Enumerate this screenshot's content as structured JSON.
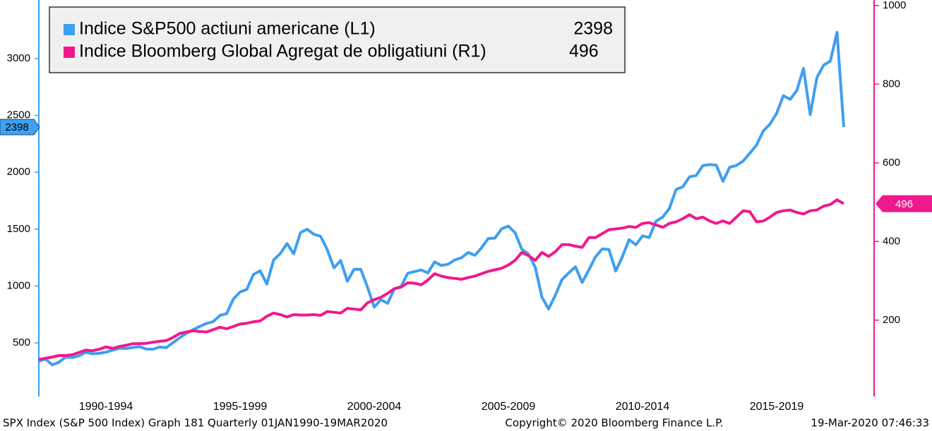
{
  "chart_data": {
    "type": "line",
    "categories": [
      null,
      null,
      null,
      null,
      null,
      null,
      null,
      null,
      null,
      null,
      null,
      null,
      null,
      null,
      null,
      null,
      null,
      null,
      null,
      null,
      null,
      null,
      null,
      null,
      null,
      null,
      null,
      null,
      null,
      null,
      null,
      null,
      null,
      null,
      null,
      null,
      null,
      null,
      null,
      null,
      null,
      null,
      null,
      null,
      null,
      null,
      null,
      null,
      null,
      null,
      null,
      null,
      null,
      null,
      null,
      null,
      null,
      null,
      null,
      null,
      null,
      null,
      null,
      null,
      null,
      null,
      null,
      null,
      null,
      null,
      null,
      null,
      null,
      null,
      null,
      null,
      null,
      null,
      null,
      null,
      null,
      null,
      null,
      null,
      null,
      null,
      null,
      null,
      null,
      null,
      null,
      null,
      null,
      null,
      null,
      null,
      null,
      null,
      null,
      null,
      null,
      null,
      null,
      null,
      null,
      null,
      null,
      null,
      null,
      null,
      null,
      null,
      null,
      null,
      null,
      null,
      null,
      null,
      null,
      null,
      null
    ],
    "xticks": [
      {
        "value": 10,
        "label": "1990-1994"
      },
      {
        "value": 30,
        "label": "1995-1999"
      },
      {
        "value": 50,
        "label": "2000-2004"
      },
      {
        "value": 70,
        "label": "2005-2009"
      },
      {
        "value": 90,
        "label": "2010-2014"
      },
      {
        "value": 110,
        "label": "2015-2019"
      }
    ],
    "series": [
      {
        "name": "Indice S&P500 actiuni americane (L1)",
        "color": "#3f9ff0",
        "axis": "y",
        "values": [
          340,
          358,
          306,
          330,
          375,
          371,
          387,
          417,
          404,
          408,
          418,
          436,
          452,
          451,
          459,
          466,
          446,
          444,
          463,
          459,
          501,
          545,
          584,
          616,
          645,
          671,
          687,
          741,
          757,
          885,
          947,
          970,
          1102,
          1134,
          1017,
          1229,
          1286,
          1373,
          1283,
          1469,
          1499,
          1455,
          1437,
          1320,
          1160,
          1224,
          1041,
          1148,
          1147,
          990,
          815,
          880,
          848,
          975,
          996,
          1112,
          1126,
          1141,
          1115,
          1212,
          1181,
          1191,
          1229,
          1248,
          1295,
          1270,
          1336,
          1418,
          1421,
          1503,
          1527,
          1468,
          1323,
          1280,
          1166,
          903,
          798,
          919,
          1057,
          1115,
          1169,
          1031,
          1141,
          1258,
          1326,
          1321,
          1131,
          1258,
          1408,
          1362,
          1441,
          1426,
          1569,
          1606,
          1682,
          1848,
          1872,
          1960,
          1972,
          2059,
          2068,
          2063,
          1920,
          2044,
          2060,
          2099,
          2168,
          2239,
          2363,
          2423,
          2519,
          2674,
          2641,
          2718,
          2914,
          2507,
          2834,
          2942,
          2977,
          3231,
          2398
        ]
      },
      {
        "name": "Indice Bloomberg Global Agregat de obligatiuni (R1)",
        "color": "#f0198c",
        "axis": "y2",
        "values": [
          100,
          103,
          106,
          110,
          110,
          112,
          118,
          124,
          122,
          126,
          132,
          128,
          133,
          136,
          140,
          140,
          141,
          144,
          146,
          148,
          156,
          166,
          170,
          173,
          171,
          170,
          176,
          182,
          178,
          184,
          190,
          192,
          196,
          198,
          210,
          218,
          214,
          208,
          214,
          213,
          213,
          214,
          212,
          222,
          220,
          218,
          230,
          228,
          226,
          244,
          252,
          258,
          268,
          280,
          284,
          295,
          294,
          290,
          302,
          318,
          312,
          308,
          306,
          304,
          308,
          312,
          318,
          324,
          328,
          332,
          340,
          352,
          372,
          364,
          352,
          372,
          362,
          374,
          392,
          392,
          388,
          385,
          410,
          410,
          420,
          430,
          432,
          434,
          438,
          436,
          446,
          448,
          442,
          436,
          446,
          450,
          458,
          468,
          458,
          462,
          452,
          446,
          452,
          446,
          462,
          478,
          476,
          450,
          452,
          462,
          474,
          478,
          480,
          474,
          470,
          478,
          480,
          490,
          494,
          506,
          496
        ]
      }
    ],
    "ylim": [
      29,
      3515
    ],
    "yticks": [
      500,
      1000,
      1500,
      2000,
      2500,
      3000
    ],
    "y2lim": [
      6,
      1014
    ],
    "y2ticks": [
      200,
      400,
      600,
      800,
      1000
    ],
    "footer": {
      "left": "SPX Index (S&P 500 Index) Graph 181  Quarterly 01JAN1990-19MAR2020",
      "center": "Copyright© 2020 Bloomberg Finance L.P.",
      "right": "19-Mar-2020 07:46:33"
    }
  }
}
